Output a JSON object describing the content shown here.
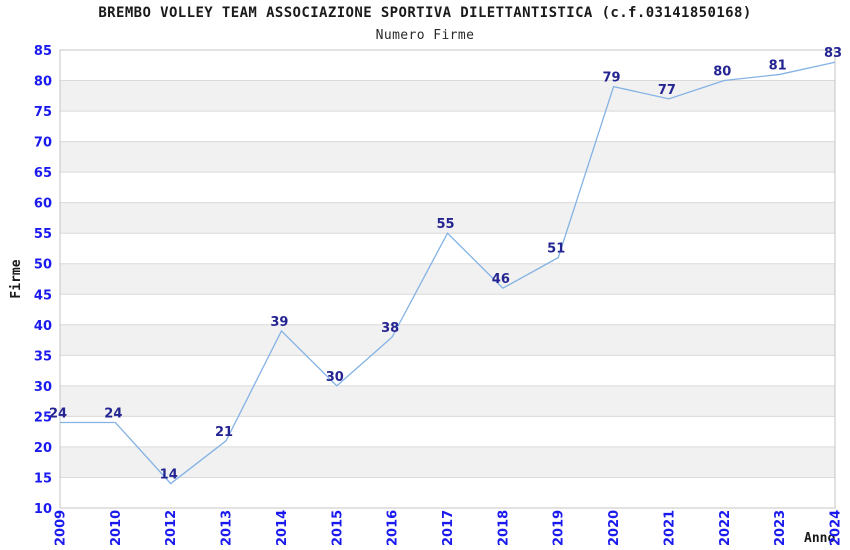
{
  "chart_data": {
    "type": "line",
    "title": "BREMBO VOLLEY TEAM ASSOCIAZIONE SPORTIVA DILETTANTISTICA (c.f.03141850168)",
    "subtitle": "Numero Firme",
    "categories": [
      "2009",
      "2010",
      "2012",
      "2013",
      "2014",
      "2015",
      "2016",
      "2017",
      "2018",
      "2019",
      "2020",
      "2021",
      "2022",
      "2023",
      "2024"
    ],
    "values": [
      24,
      24,
      14,
      21,
      39,
      30,
      38,
      55,
      46,
      51,
      79,
      77,
      80,
      81,
      83
    ],
    "xlabel": "Anno",
    "ylabel": "Firme",
    "ylim": [
      10,
      85
    ],
    "ytick_step": 5,
    "grid": "horizontal-alternating-bands",
    "legend_position": "none",
    "colors": {
      "line": "#84b2e4",
      "tick_label": "#1a1aee",
      "value_label": "#252592",
      "band_alt": "#f1f1f1",
      "band_main": "#ffffff",
      "grid_line": "#dadada",
      "plot_border": "#c4c4c4",
      "title_text": "#1a1a1a",
      "background": "#ffffff"
    }
  }
}
